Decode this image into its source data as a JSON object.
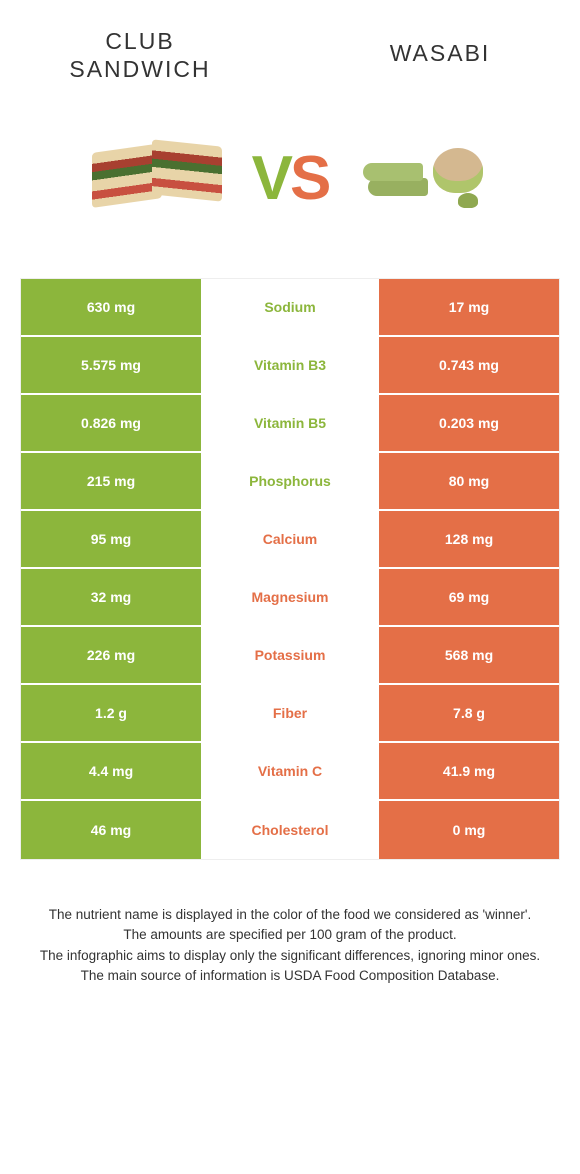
{
  "colors": {
    "left": "#8cb63c",
    "right": "#e46f47",
    "bg": "#ffffff"
  },
  "header": {
    "left_line1": "CLUB",
    "left_line2": "SANDWICH",
    "right": "WASABI",
    "vs_v": "V",
    "vs_s": "S"
  },
  "rows": [
    {
      "left": "630 mg",
      "name": "Sodium",
      "right": "17 mg",
      "winner": "left"
    },
    {
      "left": "5.575 mg",
      "name": "Vitamin B3",
      "right": "0.743 mg",
      "winner": "left"
    },
    {
      "left": "0.826 mg",
      "name": "Vitamin B5",
      "right": "0.203 mg",
      "winner": "left"
    },
    {
      "left": "215 mg",
      "name": "Phosphorus",
      "right": "80 mg",
      "winner": "left"
    },
    {
      "left": "95 mg",
      "name": "Calcium",
      "right": "128 mg",
      "winner": "right"
    },
    {
      "left": "32 mg",
      "name": "Magnesium",
      "right": "69 mg",
      "winner": "right"
    },
    {
      "left": "226 mg",
      "name": "Potassium",
      "right": "568 mg",
      "winner": "right"
    },
    {
      "left": "1.2 g",
      "name": "Fiber",
      "right": "7.8 g",
      "winner": "right"
    },
    {
      "left": "4.4 mg",
      "name": "Vitamin C",
      "right": "41.9 mg",
      "winner": "right"
    },
    {
      "left": "46 mg",
      "name": "Cholesterol",
      "right": "0 mg",
      "winner": "right"
    }
  ],
  "footnote": {
    "line1": "The nutrient name is displayed in the color of the food we considered as 'winner'.",
    "line2": "The amounts are specified per 100 gram of the product.",
    "line3": "The infographic aims to display only the significant differences, ignoring minor ones.",
    "line4": "The main source of information is USDA Food Composition Database."
  }
}
